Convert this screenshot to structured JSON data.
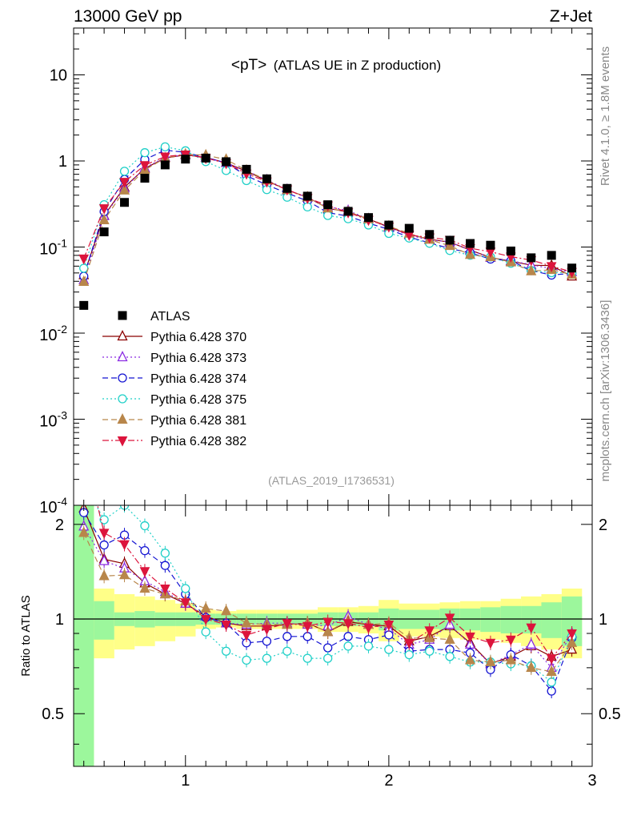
{
  "header": {
    "left": "13000 GeV pp",
    "right": "Z+Jet"
  },
  "side_labels": {
    "rivet": "Rivet 4.1.0, ≥ 1.8M events",
    "mcplots": "mcplots.cern.ch [arXiv:1306.3436]"
  },
  "chart_data": {
    "type": "scatter",
    "title": "<pT> (ATLAS UE in Z production)",
    "title_main": "<pT>",
    "title_sub": "(ATLAS UE in Z production)",
    "analysis_id": "(ATLAS_2019_I1736531)",
    "xlabel": "",
    "xlim": [
      0.45,
      3.0
    ],
    "x_ticks": [
      "1",
      "2",
      "3"
    ],
    "main_ylim": [
      0.0001,
      35
    ],
    "main_y_ticks": [
      "10",
      "1",
      "10^-1",
      "10^-2",
      "10^-3",
      "10^-4"
    ],
    "ratio_ylabel": "Ratio to ATLAS",
    "ratio_ylim": [
      0.34,
      2.3
    ],
    "ratio_y_ticks": [
      "2",
      "1",
      "0.5"
    ],
    "colors": {
      "data": "#000000",
      "p370": "#8b0000",
      "p373": "#8a2be2",
      "p374": "#1414d2",
      "p375": "#20d0c8",
      "p381": "#b8864b",
      "p382": "#dc143c",
      "band_inner": "#9cf79c",
      "band_outer": "#ffff88"
    },
    "x": [
      0.5,
      0.6,
      0.7,
      0.8,
      0.9,
      1.0,
      1.1,
      1.2,
      1.3,
      1.4,
      1.5,
      1.6,
      1.7,
      1.8,
      1.9,
      2.0,
      2.1,
      2.2,
      2.3,
      2.4,
      2.5,
      2.6,
      2.7,
      2.8,
      2.9
    ],
    "data_values": [
      0.021,
      0.15,
      0.33,
      0.63,
      0.9,
      1.05,
      1.08,
      0.98,
      0.8,
      0.62,
      0.48,
      0.39,
      0.31,
      0.26,
      0.22,
      0.18,
      0.165,
      0.14,
      0.12,
      0.11,
      0.105,
      0.09,
      0.075,
      0.08,
      0.057
    ],
    "band_inner": [
      3.0,
      0.14,
      0.05,
      0.06,
      0.05,
      0.05,
      0.04,
      0.04,
      0.04,
      0.04,
      0.04,
      0.04,
      0.05,
      0.05,
      0.05,
      0.08,
      0.07,
      0.07,
      0.08,
      0.08,
      0.09,
      0.1,
      0.1,
      0.13,
      0.18
    ],
    "band_outer": [
      3.0,
      0.25,
      0.2,
      0.18,
      0.15,
      0.12,
      0.07,
      0.06,
      0.07,
      0.07,
      0.07,
      0.07,
      0.09,
      0.09,
      0.1,
      0.15,
      0.12,
      0.12,
      0.13,
      0.14,
      0.14,
      0.16,
      0.18,
      0.2,
      0.25
    ],
    "legend": [
      {
        "key": "data",
        "label": "ATLAS",
        "marker": "square-filled",
        "line": "none"
      },
      {
        "key": "p370",
        "label": "Pythia 6.428 370",
        "marker": "triangle-open",
        "line": "solid"
      },
      {
        "key": "p373",
        "label": "Pythia 6.428 373",
        "marker": "triangle-open",
        "line": "dotted"
      },
      {
        "key": "p374",
        "label": "Pythia 6.428 374",
        "marker": "circle-open",
        "line": "dashed"
      },
      {
        "key": "p375",
        "label": "Pythia 6.428 375",
        "marker": "circle-open",
        "line": "dotted"
      },
      {
        "key": "p381",
        "label": "Pythia 6.428 381",
        "marker": "triangle-filled",
        "line": "dashed"
      },
      {
        "key": "p382",
        "label": "Pythia 6.428 382",
        "marker": "triangledown-filled",
        "line": "dashdot"
      }
    ],
    "series": [
      {
        "key": "p370",
        "name": "Pythia 6.428 370",
        "ratio": [
          2.25,
          1.55,
          1.5,
          1.3,
          1.2,
          1.12,
          1.02,
          0.97,
          0.95,
          0.95,
          0.96,
          0.97,
          0.91,
          0.98,
          0.96,
          0.95,
          0.85,
          0.88,
          0.95,
          0.84,
          0.72,
          0.76,
          0.82,
          0.76,
          0.8
        ]
      },
      {
        "key": "p373",
        "name": "Pythia 6.428 373",
        "ratio": [
          1.97,
          1.53,
          1.45,
          1.32,
          1.22,
          1.12,
          1.02,
          0.97,
          0.96,
          0.97,
          0.97,
          0.96,
          0.95,
          1.02,
          0.96,
          0.93,
          0.83,
          0.86,
          0.96,
          0.83,
          0.72,
          0.77,
          0.83,
          0.7,
          0.9
        ]
      },
      {
        "key": "p374",
        "name": "Pythia 6.428 374",
        "ratio": [
          2.18,
          1.72,
          1.85,
          1.65,
          1.48,
          1.2,
          1.01,
          0.97,
          0.84,
          0.85,
          0.88,
          0.88,
          0.81,
          0.88,
          0.86,
          0.89,
          0.79,
          0.8,
          0.8,
          0.78,
          0.69,
          0.77,
          0.71,
          0.59,
          0.87
        ]
      },
      {
        "key": "p375",
        "name": "Pythia 6.428 375",
        "ratio": [
          2.7,
          2.07,
          2.3,
          1.98,
          1.62,
          1.25,
          0.91,
          0.79,
          0.74,
          0.75,
          0.79,
          0.75,
          0.75,
          0.82,
          0.82,
          0.8,
          0.77,
          0.79,
          0.76,
          0.73,
          0.73,
          0.72,
          0.71,
          0.63,
          0.88
        ]
      },
      {
        "key": "p381",
        "name": "Pythia 6.428 381",
        "ratio": [
          1.88,
          1.37,
          1.38,
          1.25,
          1.2,
          1.14,
          1.08,
          1.06,
          0.97,
          0.96,
          0.96,
          0.97,
          0.91,
          0.99,
          0.96,
          0.97,
          0.87,
          0.87,
          0.86,
          0.74,
          0.73,
          0.74,
          0.7,
          0.68,
          0.84
        ]
      },
      {
        "key": "p382",
        "name": "Pythia 6.428 382",
        "ratio": [
          3.5,
          1.88,
          1.73,
          1.42,
          1.25,
          1.13,
          1.0,
          0.96,
          0.89,
          0.93,
          0.97,
          0.95,
          0.98,
          0.97,
          0.94,
          0.96,
          0.84,
          0.92,
          1.01,
          0.88,
          0.84,
          0.86,
          0.94,
          0.75,
          0.9
        ]
      }
    ]
  }
}
